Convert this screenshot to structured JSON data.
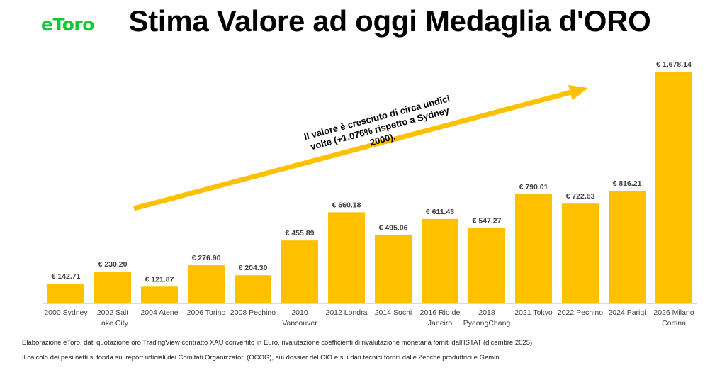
{
  "brand": {
    "logo_text": "eToro",
    "logo_color": "#13c636"
  },
  "title": "Stima Valore ad oggi Medaglia d'ORO",
  "annotation": "Il valore è cresciuto di circa undici volte (+1.076% rispetto a Sydney 2000).",
  "footnotes": [
    "Elaborazione eToro, dati quotazione oro TradingView contratto XAU convertito in Euro, rivalutazione coefficienti di rivalutazione monetaria forniti dall'ISTAT (dicembre 2025)",
    "Il calcolo dei pesi netti si fonda sui report ufficiali dei Comitati Organizzatori (OCOG), sui dossier del CIO e sui dati tecnici forniti dalle Zecche produttrici e Gemini"
  ],
  "chart_data": {
    "type": "bar",
    "categories": [
      "2000 Sydney",
      "2002 Salt Lake City",
      "2004 Atene",
      "2006 Torino",
      "2008 Pechino",
      "2010 Vancouver",
      "2012 Londra",
      "2014 Sochi",
      "2016 Rio de Janeiro",
      "2018 PyeongChang",
      "2021 Tokyo",
      "2022 Pechino",
      "2024 Parigi",
      "2026 Milano Cortina"
    ],
    "category_lines": [
      [
        "2000 Sydney"
      ],
      [
        "2002 Salt",
        "Lake City"
      ],
      [
        "2004 Atene"
      ],
      [
        "2006 Torino"
      ],
      [
        "2008 Pechino"
      ],
      [
        "2010",
        "Vancouver"
      ],
      [
        "2012 Londra"
      ],
      [
        "2014 Sochi"
      ],
      [
        "2016 Rio de",
        "Janeiro"
      ],
      [
        "2018",
        "PyeongChang"
      ],
      [
        "2021 Tokyo"
      ],
      [
        "2022 Pechino"
      ],
      [
        "2024 Parigi"
      ],
      [
        "2026 Milano",
        "Cortina"
      ]
    ],
    "values": [
      142.71,
      230.2,
      121.87,
      276.9,
      204.3,
      455.89,
      660.18,
      495.06,
      611.43,
      547.27,
      790.01,
      722.63,
      816.21,
      1678.14
    ],
    "value_labels": [
      "€ 142.71",
      "€ 230.20",
      "€ 121.87",
      "€ 276.90",
      "€ 204.30",
      "€ 455.89",
      "€ 660.18",
      "€ 495.06",
      "€ 611.43",
      "€ 547.27",
      "€ 790.01",
      "€ 722.63",
      "€ 816.21",
      "€ 1,678.14"
    ],
    "bar_color": "#ffc000",
    "arrow_color": "#ffc000",
    "ylim": [
      0,
      1678.14
    ],
    "grid": false,
    "title": "",
    "xlabel": "",
    "ylabel": ""
  }
}
